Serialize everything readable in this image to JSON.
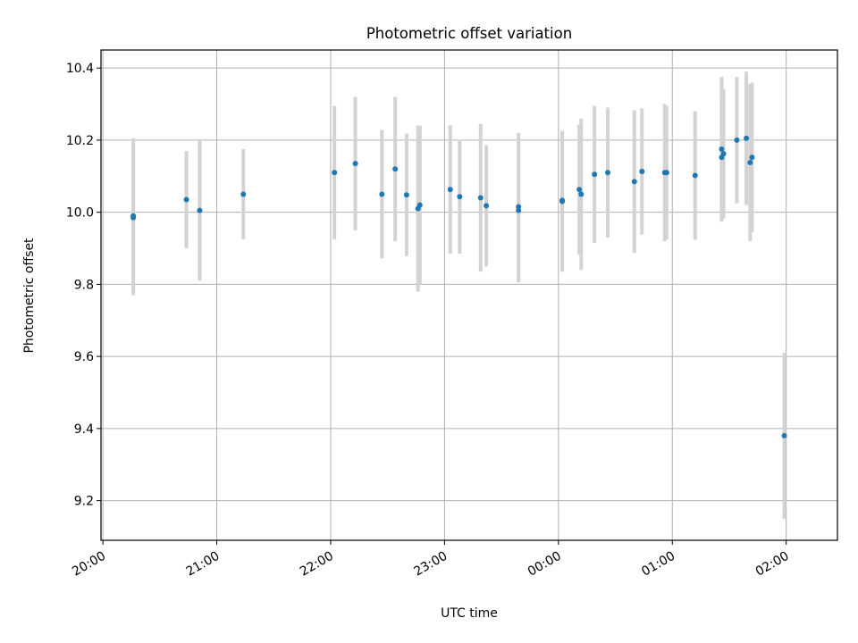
{
  "chart_data": {
    "type": "scatter",
    "title": "Photometric offset variation",
    "xlabel": "UTC time",
    "ylabel": "Photometric offset",
    "grid": true,
    "legend": "none",
    "x_ticks": [
      "20:00",
      "21:00",
      "22:00",
      "23:00",
      "00:00",
      "01:00",
      "02:00"
    ],
    "x_range": [
      "19:59",
      "02:27"
    ],
    "ylim": [
      9.09,
      10.45
    ],
    "y_ticks": [
      "9.2",
      "9.4",
      "9.6",
      "9.8",
      "10.0",
      "10.2",
      "10.4"
    ],
    "colors": {
      "point": "#1f77b4",
      "errorbar": "#d3d3d3",
      "grid": "#b0b0b0"
    },
    "series": [
      {
        "points": [
          {
            "t": "20:16",
            "y": 9.985,
            "err": 0.215
          },
          {
            "t": "20:16",
            "y": 9.99,
            "err": 0.215
          },
          {
            "t": "20:44",
            "y": 10.035,
            "err": 0.135
          },
          {
            "t": "20:51",
            "y": 10.005,
            "err": 0.195
          },
          {
            "t": "21:14",
            "y": 10.05,
            "err": 0.125
          },
          {
            "t": "22:02",
            "y": 10.11,
            "err": 0.185
          },
          {
            "t": "22:13",
            "y": 10.135,
            "err": 0.185
          },
          {
            "t": "22:27",
            "y": 10.05,
            "err": 0.178
          },
          {
            "t": "22:34",
            "y": 10.12,
            "err": 0.2
          },
          {
            "t": "22:40",
            "y": 10.048,
            "err": 0.17
          },
          {
            "t": "22:46",
            "y": 10.01,
            "err": 0.23
          },
          {
            "t": "22:47",
            "y": 10.02,
            "err": 0.22
          },
          {
            "t": "23:03",
            "y": 10.063,
            "err": 0.178
          },
          {
            "t": "23:08",
            "y": 10.043,
            "err": 0.158
          },
          {
            "t": "23:19",
            "y": 10.04,
            "err": 0.205
          },
          {
            "t": "23:22",
            "y": 10.018,
            "err": 0.168
          },
          {
            "t": "23:39",
            "y": 10.005,
            "err": 0.2
          },
          {
            "t": "23:39",
            "y": 10.015,
            "err": 0.205
          },
          {
            "t": "00:02",
            "y": 10.03,
            "err": 0.195
          },
          {
            "t": "00:02",
            "y": 10.033,
            "err": 0.193
          },
          {
            "t": "00:11",
            "y": 10.063,
            "err": 0.18
          },
          {
            "t": "00:12",
            "y": 10.05,
            "err": 0.21
          },
          {
            "t": "00:19",
            "y": 10.105,
            "err": 0.19
          },
          {
            "t": "00:26",
            "y": 10.11,
            "err": 0.18
          },
          {
            "t": "00:40",
            "y": 10.085,
            "err": 0.198
          },
          {
            "t": "00:44",
            "y": 10.113,
            "err": 0.175
          },
          {
            "t": "00:56",
            "y": 10.11,
            "err": 0.19
          },
          {
            "t": "00:57",
            "y": 10.11,
            "err": 0.185
          },
          {
            "t": "01:12",
            "y": 10.102,
            "err": 0.178
          },
          {
            "t": "01:26",
            "y": 10.152,
            "err": 0.178
          },
          {
            "t": "01:26",
            "y": 10.175,
            "err": 0.2
          },
          {
            "t": "01:27",
            "y": 10.162,
            "err": 0.18
          },
          {
            "t": "01:34",
            "y": 10.2,
            "err": 0.175
          },
          {
            "t": "01:39",
            "y": 10.205,
            "err": 0.185
          },
          {
            "t": "01:41",
            "y": 10.138,
            "err": 0.218
          },
          {
            "t": "01:42",
            "y": 10.152,
            "err": 0.208
          },
          {
            "t": "01:59",
            "y": 9.38,
            "err": 0.23
          }
        ]
      }
    ]
  }
}
